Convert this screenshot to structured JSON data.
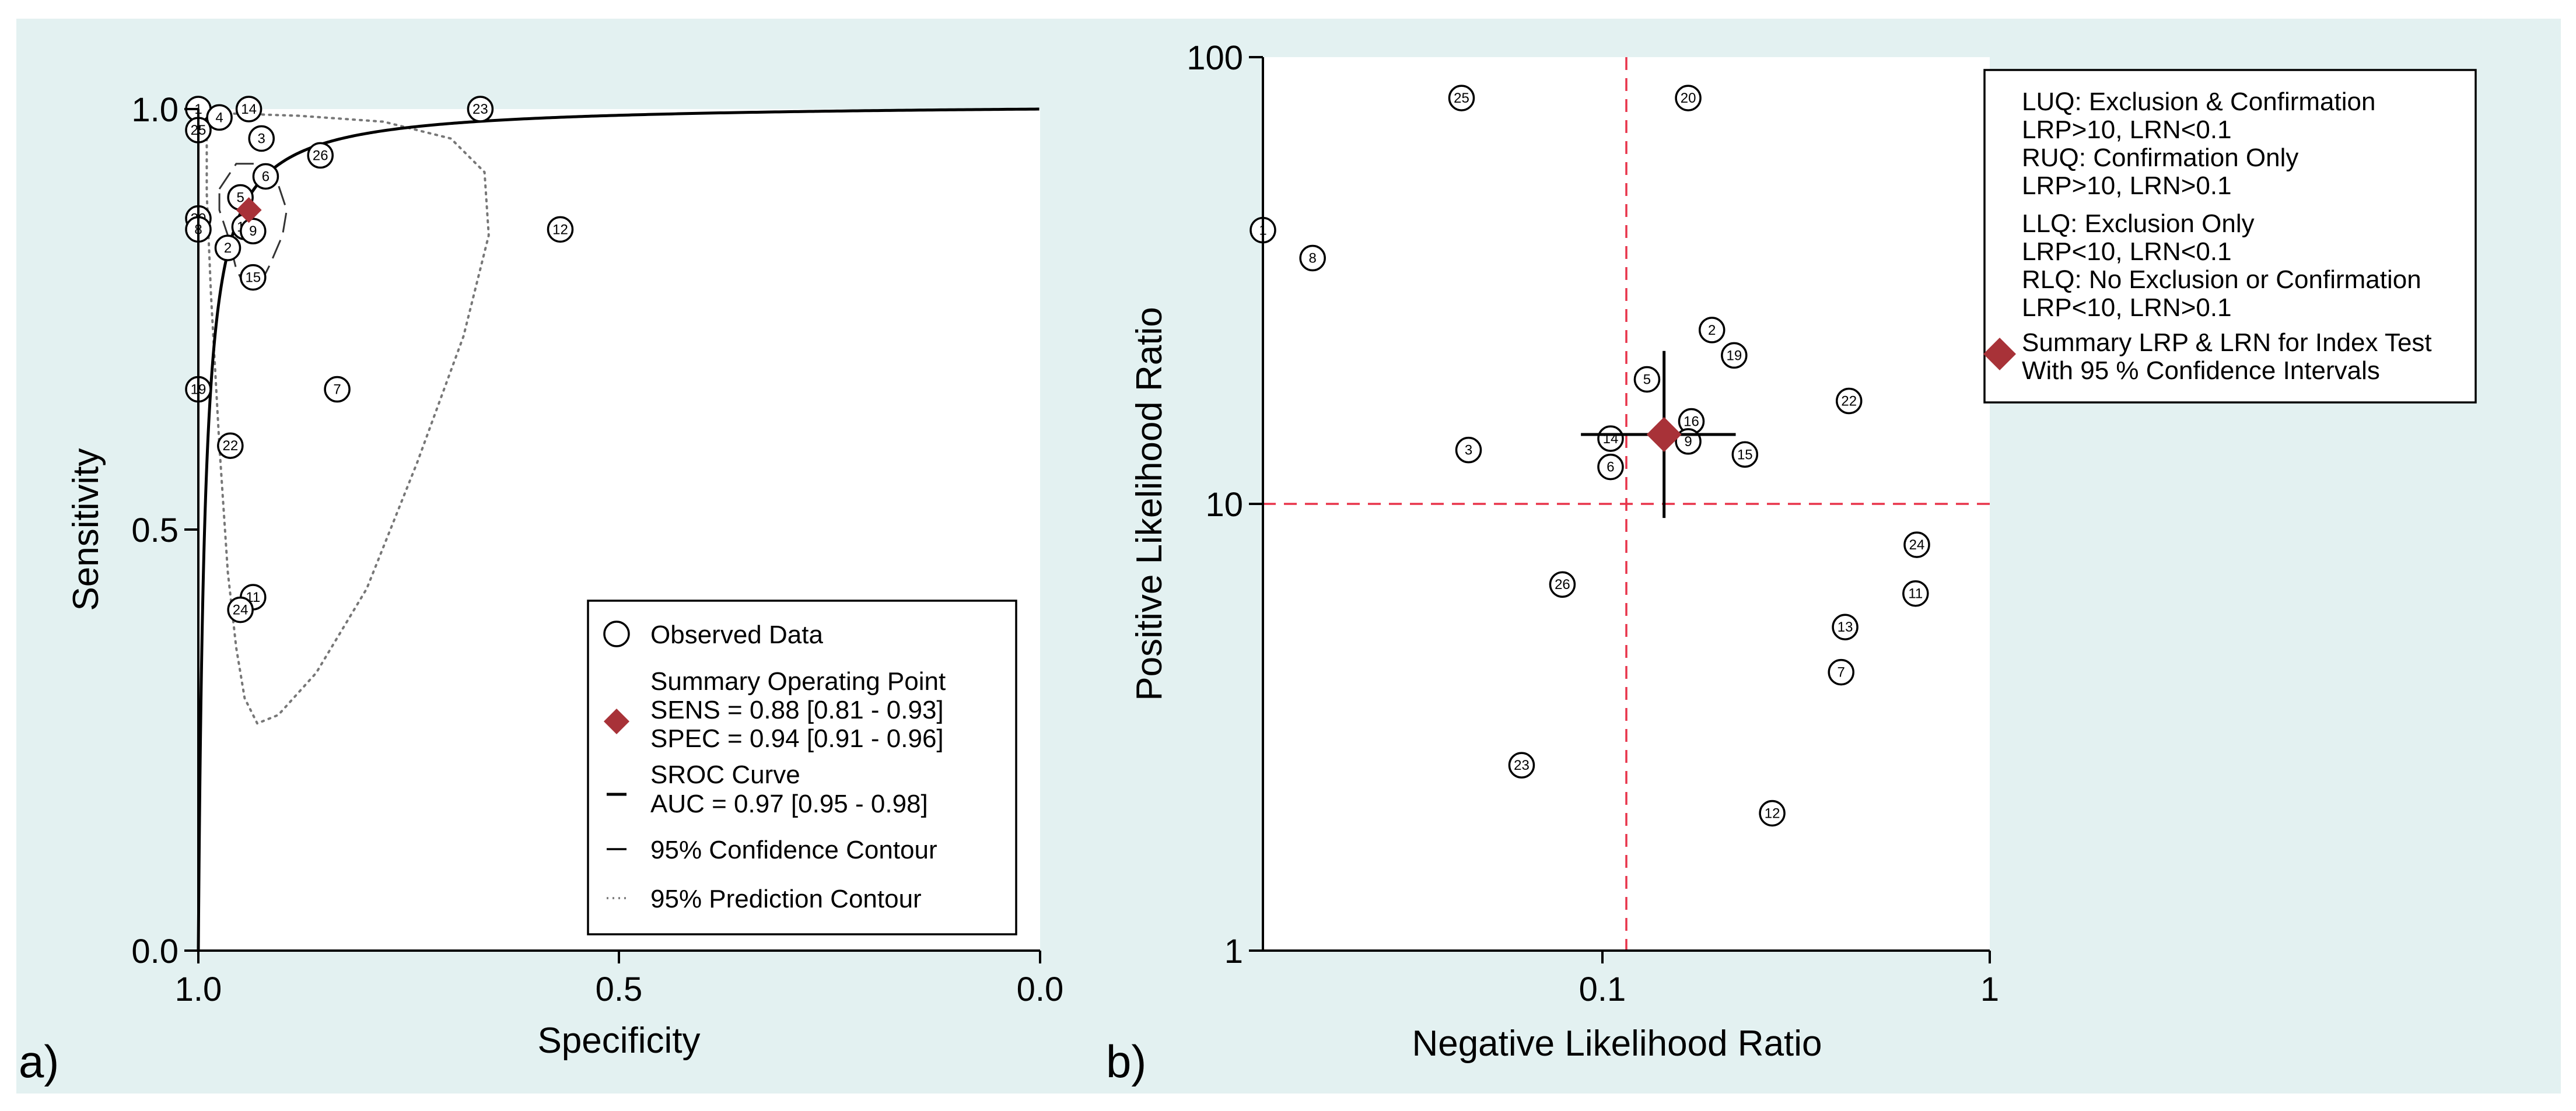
{
  "chart_data": [
    {
      "type": "scatter",
      "panel_label": "a)",
      "xlabel": "Specificity",
      "ylabel": "Sensitivity",
      "xlim": [
        1.0,
        0.0
      ],
      "ylim": [
        0.0,
        1.0
      ],
      "x_ticks": [
        "1.0",
        "0.5",
        "0.0"
      ],
      "y_ticks": [
        "0.0",
        "0.5",
        "1.0"
      ],
      "points": [
        {
          "id": "1",
          "spec": 1.0,
          "sens": 1.0
        },
        {
          "id": "4",
          "spec": 0.975,
          "sens": 0.99
        },
        {
          "id": "14",
          "spec": 0.94,
          "sens": 1.0
        },
        {
          "id": "25",
          "spec": 1.0,
          "sens": 0.975
        },
        {
          "id": "3",
          "spec": 0.925,
          "sens": 0.965
        },
        {
          "id": "23",
          "spec": 0.665,
          "sens": 1.0
        },
        {
          "id": "26",
          "spec": 0.855,
          "sens": 0.945
        },
        {
          "id": "6",
          "spec": 0.92,
          "sens": 0.92
        },
        {
          "id": "5",
          "spec": 0.95,
          "sens": 0.895
        },
        {
          "id": "20",
          "spec": 1.0,
          "sens": 0.87
        },
        {
          "id": "8",
          "spec": 1.0,
          "sens": 0.857
        },
        {
          "id": "16",
          "spec": 0.945,
          "sens": 0.86
        },
        {
          "id": "9",
          "spec": 0.935,
          "sens": 0.855
        },
        {
          "id": "2",
          "spec": 0.965,
          "sens": 0.835
        },
        {
          "id": "12",
          "spec": 0.57,
          "sens": 0.857
        },
        {
          "id": "15",
          "spec": 0.935,
          "sens": 0.8
        },
        {
          "id": "19",
          "spec": 1.0,
          "sens": 0.667
        },
        {
          "id": "7",
          "spec": 0.835,
          "sens": 0.667
        },
        {
          "id": "22",
          "spec": 0.962,
          "sens": 0.6
        },
        {
          "id": "11",
          "spec": 0.935,
          "sens": 0.42
        },
        {
          "id": "24",
          "spec": 0.95,
          "sens": 0.405
        }
      ],
      "summary_point": {
        "spec": 0.94,
        "sens": 0.88,
        "color": "#a83238"
      },
      "sroc_curve": "fitted SROC curve, AUC = 0.97",
      "confidence_contour": [
        [
          0.975,
          0.905
        ],
        [
          0.955,
          0.935
        ],
        [
          0.925,
          0.935
        ],
        [
          0.905,
          0.91
        ],
        [
          0.895,
          0.88
        ],
        [
          0.9,
          0.85
        ],
        [
          0.915,
          0.815
        ],
        [
          0.925,
          0.795
        ],
        [
          0.945,
          0.79
        ],
        [
          0.955,
          0.81
        ],
        [
          0.965,
          0.85
        ],
        [
          0.975,
          0.88
        ]
      ],
      "prediction_contour": [
        [
          0.99,
          0.99
        ],
        [
          0.99,
          0.9
        ],
        [
          0.985,
          0.78
        ],
        [
          0.975,
          0.6
        ],
        [
          0.965,
          0.45
        ],
        [
          0.955,
          0.36
        ],
        [
          0.945,
          0.3
        ],
        [
          0.93,
          0.27
        ],
        [
          0.905,
          0.28
        ],
        [
          0.86,
          0.33
        ],
        [
          0.8,
          0.43
        ],
        [
          0.74,
          0.58
        ],
        [
          0.685,
          0.73
        ],
        [
          0.655,
          0.85
        ],
        [
          0.66,
          0.925
        ],
        [
          0.7,
          0.965
        ],
        [
          0.78,
          0.985
        ],
        [
          0.88,
          0.992
        ],
        [
          0.97,
          0.995
        ]
      ],
      "legend": {
        "observed": "Observed Data",
        "summary_title": "Summary Operating Point",
        "sens": "SENS = 0.88 [0.81 - 0.93]",
        "spec": "SPEC = 0.94 [0.91 - 0.96]",
        "sroc_title": "SROC Curve",
        "auc": "AUC = 0.97 [0.95 - 0.98]",
        "ci_contour": "95% Confidence Contour",
        "pi_contour": "95% Prediction Contour"
      }
    },
    {
      "type": "scatter",
      "panel_label": "b)",
      "xlabel": "Negative Likelihood Ratio",
      "ylabel": "Positive Likelihood Ratio",
      "xscale": "log",
      "yscale": "log",
      "xlim": [
        0.01,
        1
      ],
      "ylim": [
        1,
        100
      ],
      "x_ticks": [
        "0.1",
        "1"
      ],
      "y_ticks": [
        "1",
        "10",
        "100"
      ],
      "reference_lines": {
        "x": 0.1,
        "y": 10,
        "color": "#e8334a"
      },
      "points": [
        {
          "id": "1",
          "lrn": 0.01,
          "lrp": 41
        },
        {
          "id": "8",
          "lrn": 0.0137,
          "lrp": 35.5
        },
        {
          "id": "25",
          "lrn": 0.0352,
          "lrp": 81
        },
        {
          "id": "20",
          "lrn": 0.148,
          "lrp": 81
        },
        {
          "id": "2",
          "lrn": 0.172,
          "lrp": 24.5
        },
        {
          "id": "19",
          "lrn": 0.198,
          "lrp": 21.5
        },
        {
          "id": "5",
          "lrn": 0.114,
          "lrp": 19
        },
        {
          "id": "22",
          "lrn": 0.41,
          "lrp": 17
        },
        {
          "id": "16",
          "lrn": 0.151,
          "lrp": 15.3
        },
        {
          "id": "14",
          "lrn": 0.0905,
          "lrp": 14
        },
        {
          "id": "9",
          "lrn": 0.148,
          "lrp": 13.8
        },
        {
          "id": "3",
          "lrn": 0.0368,
          "lrp": 13.2
        },
        {
          "id": "15",
          "lrn": 0.212,
          "lrp": 12.9
        },
        {
          "id": "6",
          "lrn": 0.0905,
          "lrp": 12.1
        },
        {
          "id": "24",
          "lrn": 0.63,
          "lrp": 8.1
        },
        {
          "id": "26",
          "lrn": 0.0667,
          "lrp": 6.6
        },
        {
          "id": "11",
          "lrn": 0.625,
          "lrp": 6.3
        },
        {
          "id": "13",
          "lrn": 0.4,
          "lrp": 5.3
        },
        {
          "id": "7",
          "lrn": 0.39,
          "lrp": 4.2
        },
        {
          "id": "23",
          "lrn": 0.0515,
          "lrp": 2.6
        },
        {
          "id": "12",
          "lrn": 0.252,
          "lrp": 2.03
        }
      ],
      "summary_point": {
        "lrn": 0.127,
        "lrp": 14.3,
        "lrn_ci": [
          0.075,
          0.2
        ],
        "lrp_ci": [
          9.3,
          22
        ],
        "color": "#a83238"
      },
      "legend": {
        "luq_title": "LUQ: Exclusion & Confirmation",
        "luq_rule": "LRP>10, LRN<0.1",
        "ruq_title": "RUQ: Confirmation Only",
        "ruq_rule": "LRP>10, LRN>0.1",
        "llq_title": "LLQ: Exclusion Only",
        "llq_rule": "LRP<10, LRN<0.1",
        "rlq_title": "RLQ: No Exclusion or Confirmation",
        "rlq_rule": "LRP<10, LRN>0.1",
        "summary_line1": "Summary LRP & LRN for Index Test",
        "summary_line2": "With 95 % Confidence Intervals"
      }
    }
  ]
}
